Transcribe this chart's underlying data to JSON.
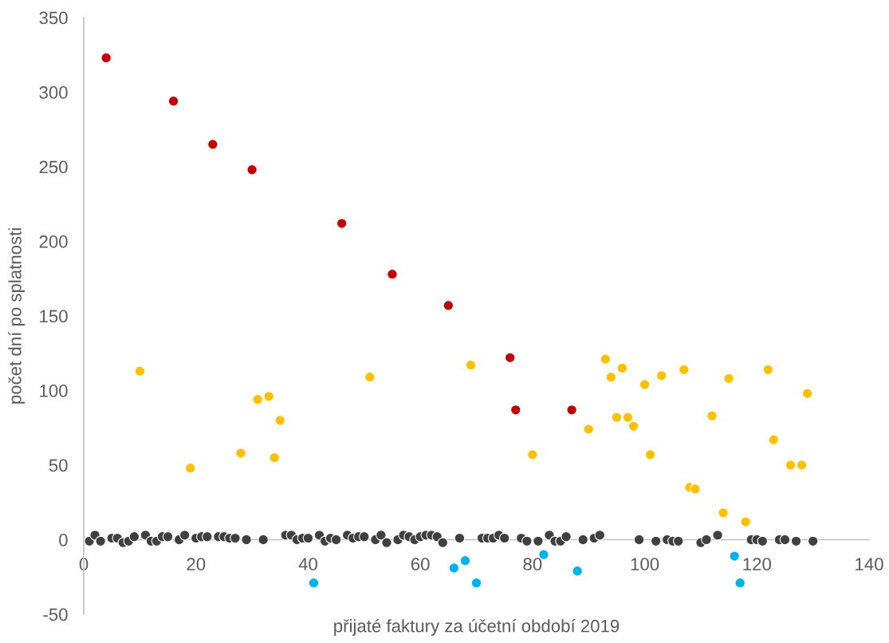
{
  "chart_data": {
    "type": "scatter",
    "xlabel": "přijaté faktury za účetní období 2019",
    "ylabel": "počet dní po splatnosti",
    "xlim": [
      0,
      140
    ],
    "xticks": [
      0,
      20,
      40,
      60,
      80,
      100,
      120,
      140
    ],
    "ylim": [
      -50,
      350
    ],
    "yticks": [
      -50,
      0,
      50,
      100,
      150,
      200,
      250,
      300,
      350
    ],
    "grid": false,
    "marker": "circle",
    "series": [
      {
        "color": "#404040",
        "x": [
          1,
          2,
          3,
          5,
          6,
          7,
          8,
          9,
          11,
          12,
          13,
          14,
          15,
          17,
          18,
          20,
          21,
          22,
          24,
          25,
          26,
          27,
          29,
          32,
          36,
          37,
          38,
          39,
          40,
          42,
          43,
          44,
          45,
          47,
          48,
          49,
          50,
          52,
          53,
          54,
          56,
          57,
          58,
          59,
          60,
          61,
          62,
          63,
          64,
          67,
          71,
          72,
          73,
          74,
          75,
          78,
          79,
          81,
          83,
          84,
          85,
          86,
          89,
          91,
          92,
          99,
          102,
          104,
          105,
          106,
          110,
          111,
          113,
          119,
          120,
          121,
          124,
          125,
          127,
          130
        ],
        "values": [
          -1,
          3,
          -1,
          1,
          1,
          -2,
          -1,
          2,
          3,
          -1,
          -1,
          2,
          2,
          0,
          3,
          1,
          2,
          2,
          2,
          2,
          1,
          1,
          0,
          0,
          3,
          3,
          0,
          1,
          1,
          3,
          -1,
          1,
          0,
          3,
          1,
          2,
          2,
          0,
          3,
          -2,
          0,
          3,
          2,
          0,
          2,
          3,
          3,
          2,
          -2,
          1,
          1,
          1,
          1,
          3,
          1,
          1,
          -1,
          -1,
          3,
          -1,
          -1,
          2,
          0,
          1,
          3,
          0,
          -1,
          0,
          -1,
          -1,
          -2,
          0,
          3,
          0,
          0,
          -1,
          0,
          0,
          -1,
          -1
        ]
      },
      {
        "color": "#c00000",
        "x": [
          4,
          16,
          23,
          30,
          46,
          55,
          65,
          76,
          77,
          87
        ],
        "values": [
          323,
          294,
          265,
          248,
          212,
          178,
          157,
          122,
          87,
          87
        ]
      },
      {
        "color": "#ffc000",
        "x": [
          10,
          19,
          28,
          31,
          33,
          34,
          35,
          51,
          69,
          80,
          90,
          93,
          94,
          95,
          96,
          97,
          98,
          100,
          101,
          103,
          107,
          108,
          109,
          112,
          114,
          115,
          118,
          122,
          123,
          126,
          128,
          129
        ],
        "values": [
          113,
          48,
          58,
          94,
          96,
          55,
          80,
          109,
          117,
          57,
          74,
          121,
          109,
          82,
          115,
          82,
          76,
          104,
          57,
          110,
          114,
          35,
          34,
          83,
          18,
          108,
          12,
          114,
          67,
          50,
          50,
          98
        ]
      },
      {
        "color": "#00b0f0",
        "x": [
          41,
          66,
          68,
          70,
          82,
          88,
          116,
          117
        ],
        "values": [
          -29,
          -19,
          -14,
          -29,
          -10,
          -21,
          -11,
          -29
        ]
      }
    ]
  }
}
